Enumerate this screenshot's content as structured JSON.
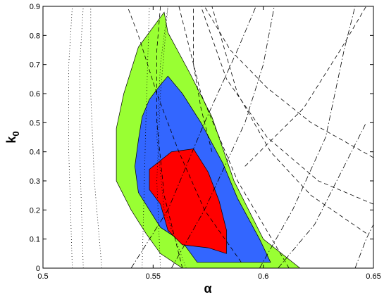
{
  "chart_data": {
    "type": "contour",
    "title": "",
    "xlabel": "α",
    "ylabel": "k",
    "ylabel_subscript": "0",
    "xlim": [
      0.5,
      0.65
    ],
    "ylim": [
      0,
      0.9
    ],
    "xticks": [
      "0.5",
      "0.55",
      "0.6",
      "0.65"
    ],
    "yticks": [
      "0",
      "0.1",
      "0.2",
      "0.3",
      "0.4",
      "0.5",
      "0.6",
      "0.7",
      "0.8",
      "0.9"
    ],
    "grid": false,
    "legend": "none",
    "regions": [
      {
        "level": "outer",
        "color": "#99ff33",
        "points": [
          [
            0.5633,
            0
          ],
          [
            0.6167,
            0
          ],
          [
            0.6,
            0.1
          ],
          [
            0.5867,
            0.3
          ],
          [
            0.5767,
            0.52
          ],
          [
            0.5667,
            0.67
          ],
          [
            0.5567,
            0.81
          ],
          [
            0.555,
            0.88
          ],
          [
            0.5433,
            0.76
          ],
          [
            0.5367,
            0.6
          ],
          [
            0.5333,
            0.48
          ],
          [
            0.5333,
            0.3
          ],
          [
            0.54,
            0.2
          ],
          [
            0.5467,
            0.12
          ],
          [
            0.5533,
            0.05
          ]
        ]
      },
      {
        "level": "middle",
        "color": "#3366ff",
        "points": [
          [
            0.5633,
            0.09
          ],
          [
            0.57,
            0.02
          ],
          [
            0.6033,
            0.02
          ],
          [
            0.5983,
            0.1
          ],
          [
            0.5883,
            0.24
          ],
          [
            0.5817,
            0.36
          ],
          [
            0.5717,
            0.5
          ],
          [
            0.5633,
            0.6
          ],
          [
            0.5567,
            0.66
          ],
          [
            0.5533,
            0.63
          ],
          [
            0.5483,
            0.58
          ],
          [
            0.545,
            0.52
          ],
          [
            0.5433,
            0.44
          ],
          [
            0.5417,
            0.35
          ],
          [
            0.5433,
            0.26
          ],
          [
            0.5533,
            0.14
          ]
        ]
      },
      {
        "level": "inner",
        "color": "#ff0000",
        "points": [
          [
            0.5583,
            0.4
          ],
          [
            0.5683,
            0.41
          ],
          [
            0.575,
            0.33
          ],
          [
            0.58,
            0.23
          ],
          [
            0.5833,
            0.13
          ],
          [
            0.5833,
            0.05
          ],
          [
            0.575,
            0.07
          ],
          [
            0.5633,
            0.08
          ],
          [
            0.5567,
            0.13
          ],
          [
            0.5533,
            0.22
          ],
          [
            0.5483,
            0.27
          ],
          [
            0.5483,
            0.34
          ]
        ]
      }
    ],
    "lines": [
      {
        "style": "dotted",
        "points": [
          [
            0.5133,
            0
          ],
          [
            0.5117,
            0.4
          ],
          [
            0.5117,
            0.7
          ],
          [
            0.5133,
            0.9
          ]
        ]
      },
      {
        "style": "dotted",
        "points": [
          [
            0.5183,
            0
          ],
          [
            0.5167,
            0.4
          ],
          [
            0.5167,
            0.7
          ],
          [
            0.5183,
            0.9
          ]
        ]
      },
      {
        "style": "dotted",
        "points": [
          [
            0.5267,
            0
          ],
          [
            0.5233,
            0.3
          ],
          [
            0.5217,
            0.6
          ],
          [
            0.5217,
            0.9
          ]
        ]
      },
      {
        "style": "dotted",
        "points": [
          [
            0.545,
            0
          ],
          [
            0.5467,
            0.5
          ],
          [
            0.5483,
            0.9
          ]
        ]
      },
      {
        "style": "dotted",
        "points": [
          [
            0.5533,
            0
          ],
          [
            0.5517,
            0.3
          ],
          [
            0.5533,
            0.6
          ],
          [
            0.5567,
            0.9
          ]
        ]
      },
      {
        "style": "dotted",
        "points": [
          [
            0.565,
            0
          ],
          [
            0.555,
            0.2
          ],
          [
            0.5517,
            0.45
          ],
          [
            0.5533,
            0.7
          ],
          [
            0.5567,
            0.9
          ]
        ]
      },
      {
        "style": "dashed",
        "points": [
          [
            0.59,
            0.02
          ],
          [
            0.5733,
            0.2
          ],
          [
            0.5617,
            0.4
          ],
          [
            0.5517,
            0.6
          ],
          [
            0.5433,
            0.8
          ],
          [
            0.5383,
            0.9
          ]
        ]
      },
      {
        "style": "dashed",
        "points": [
          [
            0.5633,
            0
          ],
          [
            0.555,
            0.25
          ],
          [
            0.5517,
            0.5
          ],
          [
            0.5517,
            0.75
          ],
          [
            0.5533,
            0.9
          ]
        ]
      },
      {
        "style": "dashed",
        "points": [
          [
            0.5767,
            0.4
          ],
          [
            0.5717,
            0.55
          ],
          [
            0.5683,
            0.7
          ],
          [
            0.5683,
            0.9
          ]
        ]
      },
      {
        "style": "dashed",
        "points": [
          [
            0.6467,
            0.12
          ],
          [
            0.6217,
            0.25
          ],
          [
            0.6033,
            0.4
          ],
          [
            0.5883,
            0.6
          ],
          [
            0.5767,
            0.9
          ]
        ]
      },
      {
        "style": "dashed",
        "points": [
          [
            0.65,
            0.22
          ],
          [
            0.625,
            0.3
          ],
          [
            0.6017,
            0.45
          ],
          [
            0.5833,
            0.65
          ],
          [
            0.5717,
            0.9
          ]
        ]
      },
      {
        "style": "dashed",
        "points": [
          [
            0.65,
            0.38
          ],
          [
            0.6217,
            0.5
          ],
          [
            0.6017,
            0.62
          ],
          [
            0.585,
            0.75
          ],
          [
            0.5733,
            0.9
          ]
        ]
      },
      {
        "style": "dashed",
        "points": [
          [
            0.6117,
            0
          ],
          [
            0.5883,
            0.3
          ],
          [
            0.5717,
            0.6
          ],
          [
            0.5617,
            0.9
          ]
        ]
      },
      {
        "style": "dashed",
        "points": [
          [
            0.5917,
            0.35
          ],
          [
            0.6183,
            0.55
          ],
          [
            0.635,
            0.75
          ],
          [
            0.6467,
            0.9
          ]
        ]
      },
      {
        "style": "dashdot",
        "points": [
          [
            0.54,
            0
          ],
          [
            0.5567,
            0.2
          ],
          [
            0.5733,
            0.5
          ],
          [
            0.5883,
            0.75
          ],
          [
            0.5967,
            0.9
          ]
        ]
      },
      {
        "style": "dashdot",
        "points": [
          [
            0.5583,
            0
          ],
          [
            0.5733,
            0.2
          ],
          [
            0.5917,
            0.5
          ],
          [
            0.6,
            0.7
          ],
          [
            0.605,
            0.9
          ]
        ]
      },
      {
        "style": "dashdot",
        "points": [
          [
            0.5983,
            0
          ],
          [
            0.6133,
            0.2
          ],
          [
            0.6283,
            0.45
          ],
          [
            0.6367,
            0.75
          ],
          [
            0.6417,
            0.9
          ]
        ]
      },
      {
        "style": "dashdot",
        "points": [
          [
            0.6067,
            0
          ],
          [
            0.6233,
            0.15
          ],
          [
            0.6367,
            0.35
          ],
          [
            0.6467,
            0.5
          ]
        ]
      },
      {
        "style": "dashdot",
        "points": [
          [
            0.6417,
            0
          ],
          [
            0.6467,
            0.1
          ],
          [
            0.65,
            0.15
          ]
        ]
      }
    ]
  }
}
